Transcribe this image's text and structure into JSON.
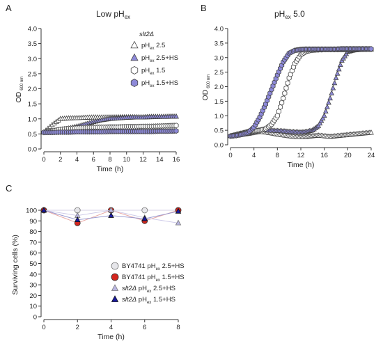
{
  "chart_data": [
    {
      "panel": "A",
      "type": "scatter",
      "title_main": "Low pH",
      "title_sub": "ex",
      "xlabel": "Time (h)",
      "ylabel_main": "OD",
      "ylabel_sub": "600 nm",
      "xlim": [
        0,
        16
      ],
      "ylim": [
        0.0,
        4.0
      ],
      "xticks": [
        0,
        2,
        4,
        6,
        8,
        10,
        12,
        14,
        16
      ],
      "yticks": [
        0.0,
        0.5,
        1.0,
        1.5,
        2.0,
        2.5,
        3.0,
        3.5,
        4.0
      ],
      "legend_header": "slt2Δ",
      "legend_entries": [
        {
          "pre": "pH",
          "sub": "ex",
          "post": " 2.5",
          "marker": "triangle",
          "fill": "#ffffff"
        },
        {
          "pre": "pH",
          "sub": "ex",
          "post": " 2.5+HS",
          "marker": "triangle",
          "fill": "#8d89d8"
        },
        {
          "pre": "pH",
          "sub": "ex",
          "post": " 1.5",
          "marker": "hexagon",
          "fill": "#ffffff"
        },
        {
          "pre": "pH",
          "sub": "ex",
          "post": " 1.5+HS",
          "marker": "hexagon",
          "fill": "#8d89d8"
        }
      ],
      "series": [
        {
          "marker": "triangle",
          "fill": "#ffffff",
          "x": [
            0,
            1,
            2,
            3,
            4,
            5,
            6,
            7,
            8,
            9,
            10,
            11,
            12,
            13,
            14,
            15,
            16
          ],
          "y": [
            0.55,
            0.8,
            1.0,
            1.02,
            1.03,
            1.04,
            1.05,
            1.05,
            1.05,
            1.06,
            1.06,
            1.06,
            1.06,
            1.07,
            1.07,
            1.08,
            1.08
          ]
        },
        {
          "marker": "triangle",
          "fill": "#8d89d8",
          "x": [
            0,
            1,
            2,
            3,
            4,
            5,
            6,
            7,
            8,
            9,
            10,
            11,
            12,
            13,
            14,
            15,
            16
          ],
          "y": [
            0.55,
            0.58,
            0.62,
            0.68,
            0.75,
            0.82,
            0.9,
            0.96,
            1.0,
            1.02,
            1.04,
            1.05,
            1.05,
            1.06,
            1.07,
            1.07,
            1.08
          ]
        },
        {
          "marker": "hexagon",
          "fill": "#ffffff",
          "x": [
            0,
            1,
            2,
            3,
            4,
            5,
            6,
            7,
            8,
            9,
            10,
            11,
            12,
            13,
            14,
            15,
            16
          ],
          "y": [
            0.55,
            0.6,
            0.65,
            0.68,
            0.7,
            0.71,
            0.72,
            0.72,
            0.73,
            0.73,
            0.74,
            0.74,
            0.75,
            0.75,
            0.76,
            0.77,
            0.78
          ]
        },
        {
          "marker": "hexagon",
          "fill": "#8d89d8",
          "x": [
            0,
            1,
            2,
            3,
            4,
            5,
            6,
            7,
            8,
            9,
            10,
            11,
            12,
            13,
            14,
            15,
            16
          ],
          "y": [
            0.55,
            0.55,
            0.56,
            0.56,
            0.57,
            0.57,
            0.57,
            0.57,
            0.58,
            0.58,
            0.58,
            0.58,
            0.58,
            0.58,
            0.59,
            0.59,
            0.6
          ]
        }
      ]
    },
    {
      "panel": "B",
      "type": "scatter",
      "title_main": "pH",
      "title_sub": "ex",
      "title_post": " 5.0",
      "xlabel": "Time (h)",
      "ylabel_main": "OD",
      "ylabel_sub": "600 nm",
      "xlim": [
        0,
        24
      ],
      "ylim": [
        0.0,
        4.0
      ],
      "xticks": [
        0,
        4,
        8,
        12,
        16,
        20,
        24
      ],
      "yticks": [
        0.0,
        0.5,
        1.0,
        1.5,
        2.0,
        2.5,
        3.0,
        3.5,
        4.0
      ],
      "series": [
        {
          "marker": "triangle",
          "fill": "#ffffff",
          "x": [
            0,
            1,
            2,
            3,
            4,
            5,
            6,
            7,
            8,
            9,
            10,
            11,
            12,
            13,
            14,
            15,
            16,
            17,
            18,
            19,
            20,
            21,
            22,
            23,
            24
          ],
          "y": [
            0.3,
            0.32,
            0.35,
            0.38,
            0.42,
            0.45,
            0.43,
            0.4,
            0.36,
            0.33,
            0.3,
            0.28,
            0.27,
            0.28,
            0.3,
            0.32,
            0.3,
            0.28,
            0.3,
            0.32,
            0.34,
            0.36,
            0.38,
            0.4,
            0.42
          ]
        },
        {
          "marker": "triangle",
          "fill": "#8d89d8",
          "x": [
            0,
            1,
            2,
            3,
            4,
            5,
            6,
            7,
            8,
            9,
            10,
            11,
            12,
            13,
            14,
            15,
            16,
            17,
            18,
            19,
            20,
            21,
            22,
            23,
            24
          ],
          "y": [
            0.3,
            0.35,
            0.4,
            0.45,
            0.48,
            0.5,
            0.5,
            0.49,
            0.48,
            0.47,
            0.45,
            0.44,
            0.43,
            0.45,
            0.5,
            0.65,
            1.0,
            1.6,
            2.3,
            2.9,
            3.2,
            3.25,
            3.27,
            3.28,
            3.28
          ]
        },
        {
          "marker": "hexagon",
          "fill": "#ffffff",
          "x": [
            0,
            1,
            2,
            3,
            4,
            5,
            6,
            7,
            8,
            9,
            10,
            11,
            12,
            13,
            14,
            15,
            16,
            17,
            18,
            19,
            20,
            21,
            22,
            23,
            24
          ],
          "y": [
            0.3,
            0.35,
            0.4,
            0.45,
            0.48,
            0.5,
            0.55,
            0.7,
            1.0,
            1.6,
            2.3,
            2.8,
            3.1,
            3.22,
            3.26,
            3.27,
            3.28,
            3.28,
            3.28,
            3.28,
            3.28,
            3.29,
            3.29,
            3.29,
            3.29
          ]
        },
        {
          "marker": "hexagon",
          "fill": "#8d89d8",
          "x": [
            0,
            1,
            2,
            3,
            4,
            5,
            6,
            7,
            8,
            9,
            10,
            11,
            12,
            13,
            14,
            15,
            16,
            17,
            18,
            19,
            20,
            21,
            22,
            23,
            24
          ],
          "y": [
            0.3,
            0.32,
            0.36,
            0.42,
            0.6,
            0.95,
            1.4,
            1.9,
            2.4,
            2.85,
            3.15,
            3.25,
            3.28,
            3.29,
            3.29,
            3.29,
            3.29,
            3.29,
            3.29,
            3.3,
            3.3,
            3.3,
            3.3,
            3.3,
            3.3
          ]
        }
      ]
    },
    {
      "panel": "C",
      "type": "line",
      "xlabel": "Time (h)",
      "ylabel": "Surviving cells (%)",
      "xlim": [
        0,
        8
      ],
      "ylim": [
        0,
        100
      ],
      "xticks": [
        0,
        2,
        4,
        6,
        8
      ],
      "yticks": [
        0,
        10,
        20,
        30,
        40,
        50,
        60,
        70,
        80,
        90,
        100
      ],
      "x": [
        0,
        2,
        4,
        6,
        8
      ],
      "series": [
        {
          "legend_pre": "BY4741 pH",
          "legend_sub": "ex",
          "legend_post": " 2.5+HS",
          "marker": "circle",
          "fill": "#e6e6ea",
          "stroke": "#777",
          "line": "#d6cfe6",
          "values": [
            100,
            100,
            100,
            100,
            100
          ]
        },
        {
          "legend_pre": "BY4741 pH",
          "legend_sub": "ex",
          "legend_post": " 1.5+HS",
          "marker": "circle",
          "fill": "#d4261e",
          "stroke": "#333",
          "line": "#e8a8a4",
          "values": [
            100,
            88,
            100,
            90,
            100
          ]
        },
        {
          "legend_pre": "slt2Δ",
          "legend_mid": " pH",
          "legend_sub": "ex",
          "legend_post": " 2.5+HS",
          "marker": "triangle",
          "fill": "#b9b6e2",
          "stroke": "#777",
          "line": "#cfcbe9",
          "values": [
            100,
            95,
            100,
            93,
            88
          ]
        },
        {
          "legend_pre": "slt2Δ",
          "legend_mid": " pH",
          "legend_sub": "ex",
          "legend_post": " 1.5+HS",
          "marker": "triangle",
          "fill": "#1a1aa0",
          "stroke": "#111",
          "line": "#9a9ad0",
          "values": [
            100,
            91,
            95,
            92,
            99
          ]
        }
      ]
    }
  ],
  "colors": {
    "lavender": "#8d89d8",
    "outline": "#555555",
    "axis": "#333333"
  }
}
